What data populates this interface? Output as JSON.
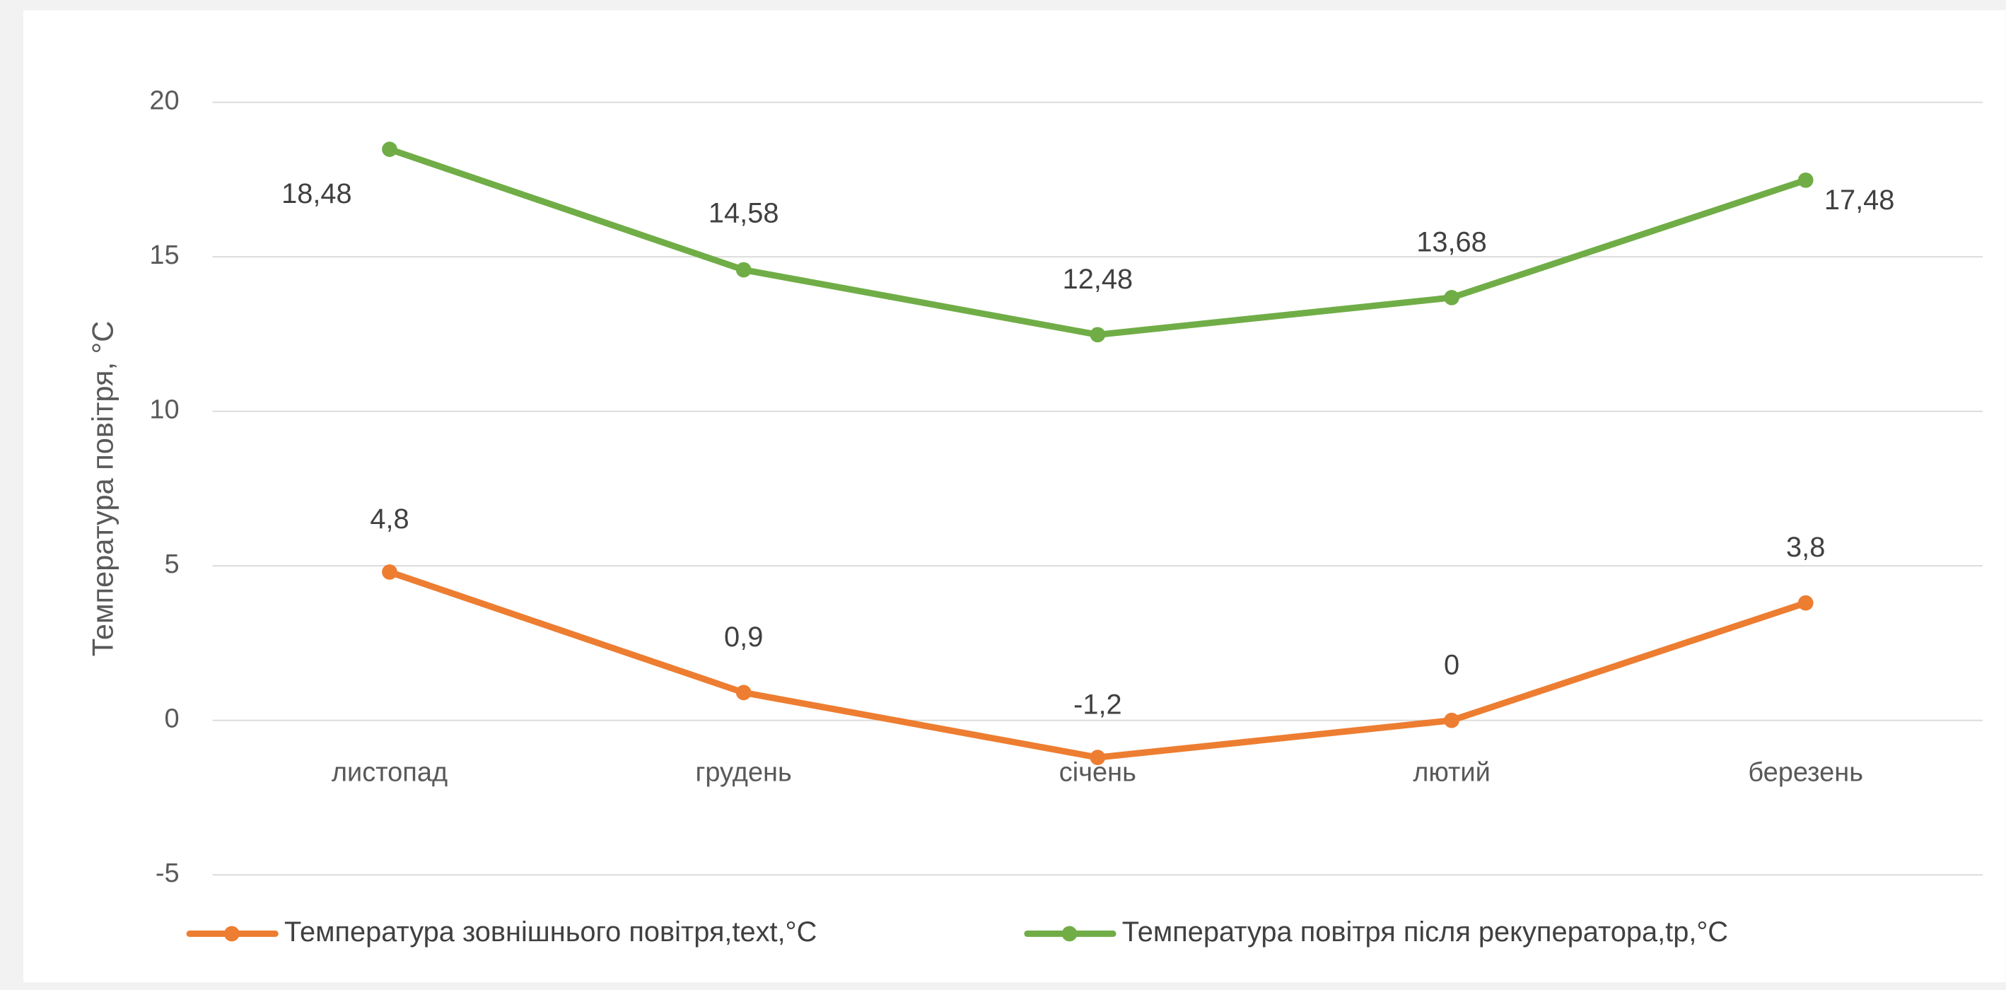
{
  "chart_data": {
    "type": "line",
    "y_label": "Температура повітря, °C",
    "categories": [
      "листопад",
      "грудень",
      "січень",
      "лютий",
      "березень"
    ],
    "series": [
      {
        "name": "Температура зовнішнього повітря,text,°C",
        "color": "#ed7d31",
        "values": [
          4.8,
          0.9,
          -1.2,
          0,
          3.8
        ],
        "value_labels": [
          "4,8",
          "0,9",
          "-1,2",
          "0",
          "3,8"
        ]
      },
      {
        "name": "Температура повітря після рекуператора,tp,°C",
        "color": "#70ad47",
        "values": [
          18.48,
          14.58,
          12.48,
          13.68,
          17.48
        ],
        "value_labels": [
          "18,48",
          "14,58",
          "12,48",
          "13,68",
          "17,48"
        ]
      }
    ],
    "ylim": [
      -5,
      20
    ],
    "yticks": [
      -5,
      0,
      5,
      10,
      15,
      20
    ],
    "grid": true,
    "legend": "bottom"
  }
}
